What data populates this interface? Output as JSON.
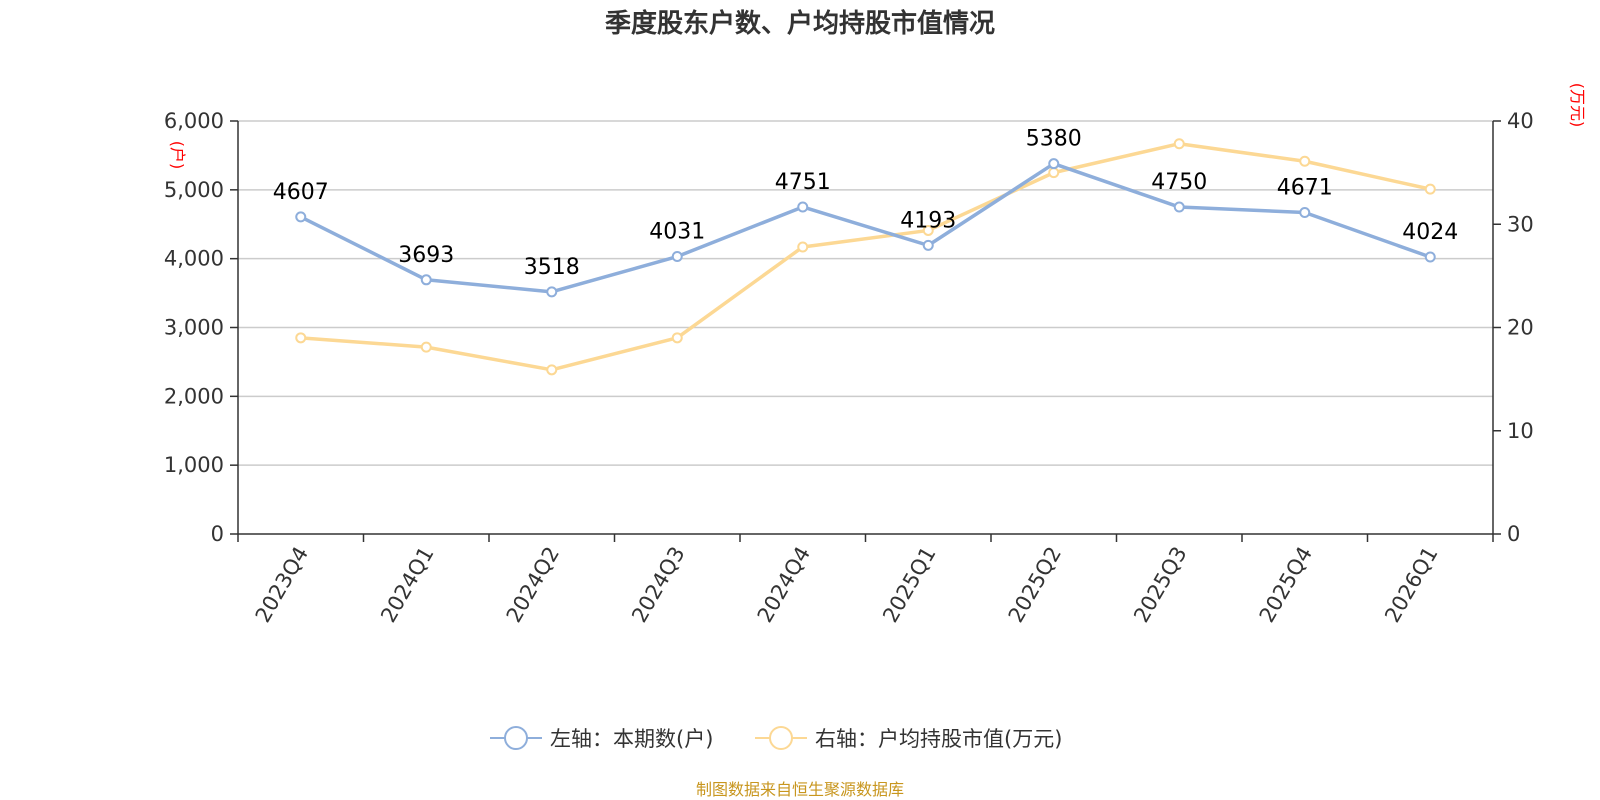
{
  "chart_data": {
    "type": "line",
    "title": "季度股东户数、户均持股市值情况",
    "categories": [
      "2023Q4",
      "2024Q1",
      "2024Q2",
      "2024Q3",
      "2024Q4",
      "2025Q1",
      "2025Q2",
      "2025Q3",
      "2025Q4",
      "2026Q1"
    ],
    "left_axis": {
      "unit": "(户)",
      "range": [
        0,
        6000
      ],
      "ticks": [
        "0",
        "1,000",
        "2,000",
        "3,000",
        "4,000",
        "5,000",
        "6,000"
      ]
    },
    "right_axis": {
      "unit": "(万元)",
      "range": [
        0,
        40
      ],
      "ticks": [
        "0",
        "10",
        "20",
        "30",
        "40"
      ]
    },
    "series": [
      {
        "name": "左轴：本期数(户)",
        "axis": "left",
        "color": "#8eaedb",
        "values": [
          4607,
          3693,
          3518,
          4031,
          4751,
          4193,
          5380,
          4750,
          4671,
          4024
        ],
        "labels": [
          "4607",
          "3693",
          "3518",
          "4031",
          "4751",
          "4193",
          "5380",
          "4750",
          "4671",
          "4024"
        ]
      },
      {
        "name": "右轴：户均持股市值(万元)",
        "axis": "right",
        "color": "#fcd894",
        "values": [
          19.0,
          18.1,
          15.9,
          19.0,
          27.8,
          29.4,
          35.0,
          37.8,
          36.1,
          33.4
        ]
      }
    ],
    "grid": true,
    "legend_position": "bottom-center",
    "source": "制图数据来自恒生聚源数据库"
  }
}
